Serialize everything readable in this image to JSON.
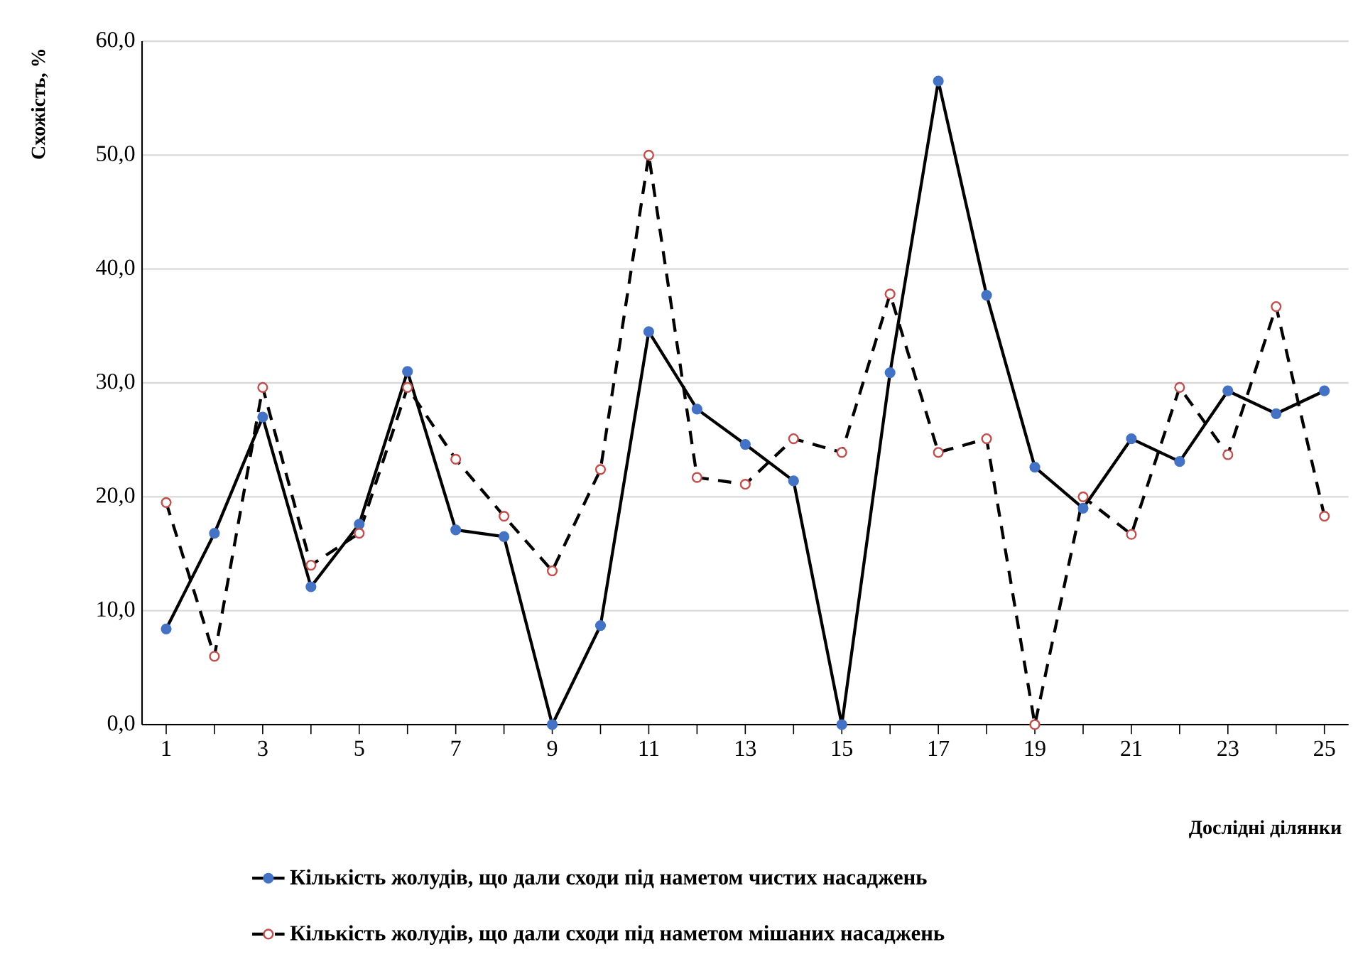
{
  "chart_data": {
    "type": "line",
    "ylabel": "Схожість, %",
    "xlabel": "Дослідні ділянки",
    "categories": [
      "1",
      null,
      "3",
      null,
      "5",
      null,
      "7",
      null,
      "9",
      null,
      "11",
      null,
      "13",
      null,
      "15",
      null,
      "17",
      null,
      "19",
      null,
      "21",
      null,
      "23",
      null,
      "25"
    ],
    "series": [
      {
        "name": "Кількість жолудів, що дали сходи під наметом чистих насаджень",
        "color": "#000000",
        "line_style": "solid",
        "marker": "circle",
        "values": [
          8.4,
          16.8,
          27.0,
          12.1,
          17.6,
          31.0,
          17.1,
          16.5,
          0,
          8.7,
          34.5,
          27.7,
          24.6,
          21.4,
          0,
          30.9,
          56.5,
          37.7,
          22.6,
          19.0,
          25.1,
          23.1,
          29.3,
          27.3,
          29.3
        ]
      },
      {
        "name": "Кількість жолудів, що дали сходи під наметом мішаних насаджень",
        "color": "#000000",
        "line_style": "dashed",
        "marker": "circle",
        "values": [
          19.5,
          6.0,
          29.6,
          14.0,
          16.8,
          29.6,
          23.3,
          18.3,
          13.5,
          22.4,
          50.0,
          21.7,
          21.1,
          25.1,
          23.9,
          37.8,
          23.9,
          25.1,
          0,
          20.0,
          16.7,
          29.6,
          23.7,
          36.7,
          18.3
        ]
      }
    ],
    "ylim": [
      0,
      60
    ],
    "yticks": [
      {
        "value": 0,
        "label": "0,0"
      },
      {
        "value": 10,
        "label": "10,0"
      },
      {
        "value": 20,
        "label": "20,0"
      },
      {
        "value": 30,
        "label": "30,0"
      },
      {
        "value": 40,
        "label": "40,0"
      },
      {
        "value": 50,
        "label": "50,0"
      },
      {
        "value": 60,
        "label": "60,0"
      }
    ],
    "grid": "y",
    "legend": "bottom"
  }
}
